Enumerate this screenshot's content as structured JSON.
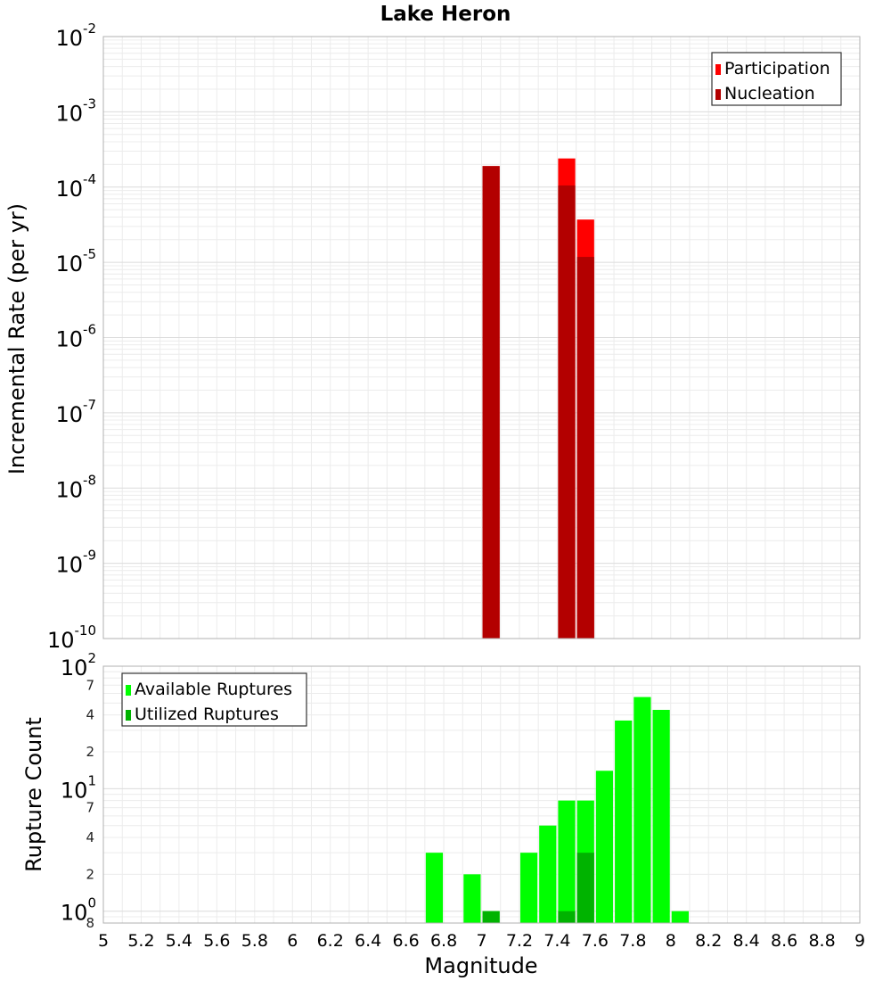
{
  "chart_data": [
    {
      "type": "bar",
      "title": "Lake Heron",
      "xlabel": "",
      "ylabel": "Incremental Rate (per yr)",
      "xlim": [
        5,
        9
      ],
      "ylim": [
        1e-10,
        0.01
      ],
      "yscale": "log",
      "grid": true,
      "legend_position": "top-right",
      "x_ticks": [
        "5",
        "5.2",
        "5.4",
        "5.6",
        "5.8",
        "6",
        "6.2",
        "6.4",
        "6.6",
        "6.8",
        "7",
        "7.2",
        "7.4",
        "7.6",
        "7.8",
        "8",
        "8.2",
        "8.4",
        "8.6",
        "8.8",
        "9"
      ],
      "y_ticks": [
        {
          "base": "10",
          "exp": "-2"
        },
        {
          "base": "10",
          "exp": "-3"
        },
        {
          "base": "10",
          "exp": "-4"
        },
        {
          "base": "10",
          "exp": "-5"
        },
        {
          "base": "10",
          "exp": "-6"
        },
        {
          "base": "10",
          "exp": "-7"
        },
        {
          "base": "10",
          "exp": "-8"
        },
        {
          "base": "10",
          "exp": "-9"
        },
        {
          "base": "10",
          "exp": "-10"
        }
      ],
      "bar_width": 0.1,
      "series": [
        {
          "name": "Participation",
          "color": "#ff0000",
          "points": [
            {
              "x": 7.05,
              "y": 0.00019
            },
            {
              "x": 7.45,
              "y": 0.00024
            },
            {
              "x": 7.55,
              "y": 3.7e-05
            }
          ]
        },
        {
          "name": "Nucleation",
          "color": "#b30000",
          "points": [
            {
              "x": 7.05,
              "y": 0.00019
            },
            {
              "x": 7.45,
              "y": 0.000105
            },
            {
              "x": 7.55,
              "y": 1.18e-05
            }
          ]
        }
      ]
    },
    {
      "type": "bar",
      "title": "",
      "xlabel": "Magnitude",
      "ylabel": "Rupture Count",
      "xlim": [
        5,
        9
      ],
      "ylim": [
        0.8,
        100
      ],
      "yscale": "log",
      "grid": true,
      "legend_position": "top-left",
      "x_ticks": [
        "5",
        "5.2",
        "5.4",
        "5.6",
        "5.8",
        "6",
        "6.2",
        "6.4",
        "6.6",
        "6.8",
        "7",
        "7.2",
        "7.4",
        "7.6",
        "7.8",
        "8",
        "8.2",
        "8.4",
        "8.6",
        "8.8",
        "9"
      ],
      "y_ticks": [
        {
          "base": "10",
          "exp": "2"
        },
        {
          "base": "10",
          "exp": "1"
        },
        {
          "base": "10",
          "exp": "0"
        }
      ],
      "y_minor_ticks": [
        {
          "label": "7",
          "value": 70
        },
        {
          "label": "4",
          "value": 40
        },
        {
          "label": "2",
          "value": 20
        },
        {
          "label": "7",
          "value": 7
        },
        {
          "label": "4",
          "value": 4
        },
        {
          "label": "2",
          "value": 2
        },
        {
          "label": "8",
          "value": 0.8
        }
      ],
      "bar_width": 0.1,
      "series": [
        {
          "name": "Available Ruptures",
          "color": "#00ff00",
          "points": [
            {
              "x": 6.75,
              "y": 3
            },
            {
              "x": 6.95,
              "y": 2
            },
            {
              "x": 7.05,
              "y": 1
            },
            {
              "x": 7.25,
              "y": 3
            },
            {
              "x": 7.35,
              "y": 5
            },
            {
              "x": 7.45,
              "y": 8
            },
            {
              "x": 7.55,
              "y": 8
            },
            {
              "x": 7.65,
              "y": 14
            },
            {
              "x": 7.75,
              "y": 36
            },
            {
              "x": 7.85,
              "y": 56
            },
            {
              "x": 7.95,
              "y": 44
            },
            {
              "x": 8.05,
              "y": 1
            }
          ]
        },
        {
          "name": "Utilized Ruptures",
          "color": "#00b300",
          "points": [
            {
              "x": 7.05,
              "y": 1
            },
            {
              "x": 7.45,
              "y": 1
            },
            {
              "x": 7.55,
              "y": 3
            }
          ]
        }
      ]
    }
  ]
}
